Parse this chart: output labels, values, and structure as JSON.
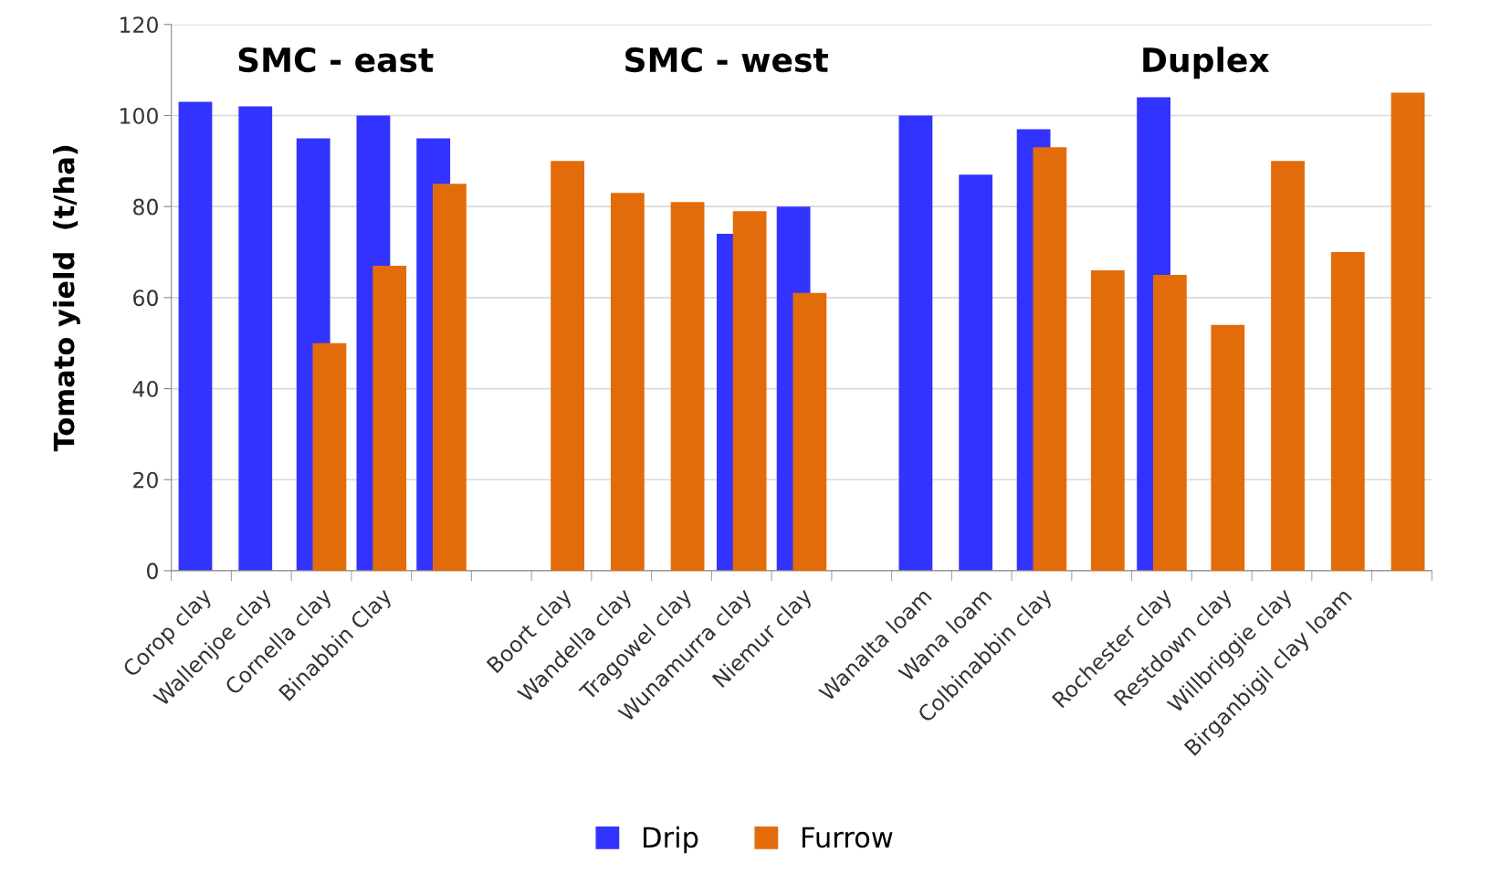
{
  "chart_data": {
    "type": "bar",
    "ylabel": "Tomato yield  (t/ha)",
    "categories": [
      "Corop clay",
      "Wallenjoe clay",
      "Cornella clay",
      "Binabbin Clay",
      null,
      null,
      "Boort clay",
      "Wandella clay",
      "Tragowel clay",
      "Wunamurra clay",
      "Niemur clay",
      null,
      "Wanalta loam",
      "Wana loam",
      "Colbinabbin clay",
      null,
      "Rochester clay",
      "Restdown clay",
      "Willbriggie clay",
      "Birganbigil clay loam",
      null
    ],
    "series": [
      {
        "name": "Drip",
        "color": "#3333ff",
        "values": [
          103,
          102,
          95,
          100,
          95,
          null,
          null,
          null,
          null,
          74,
          80,
          null,
          100,
          87,
          97,
          null,
          104,
          null,
          null,
          null,
          null
        ]
      },
      {
        "name": "Furrow",
        "color": "#e36c0a",
        "values": [
          null,
          null,
          50,
          67,
          85,
          null,
          90,
          83,
          81,
          79,
          61,
          null,
          null,
          null,
          93,
          66,
          65,
          54,
          90,
          70,
          105
        ]
      }
    ],
    "ylim": [
      0,
      120
    ],
    "yticks": [
      0,
      20,
      40,
      60,
      80,
      100,
      120
    ],
    "grid": "y",
    "legend": "bottom",
    "annotations": [
      "SMC - east",
      "SMC - west",
      "Duplex"
    ]
  }
}
